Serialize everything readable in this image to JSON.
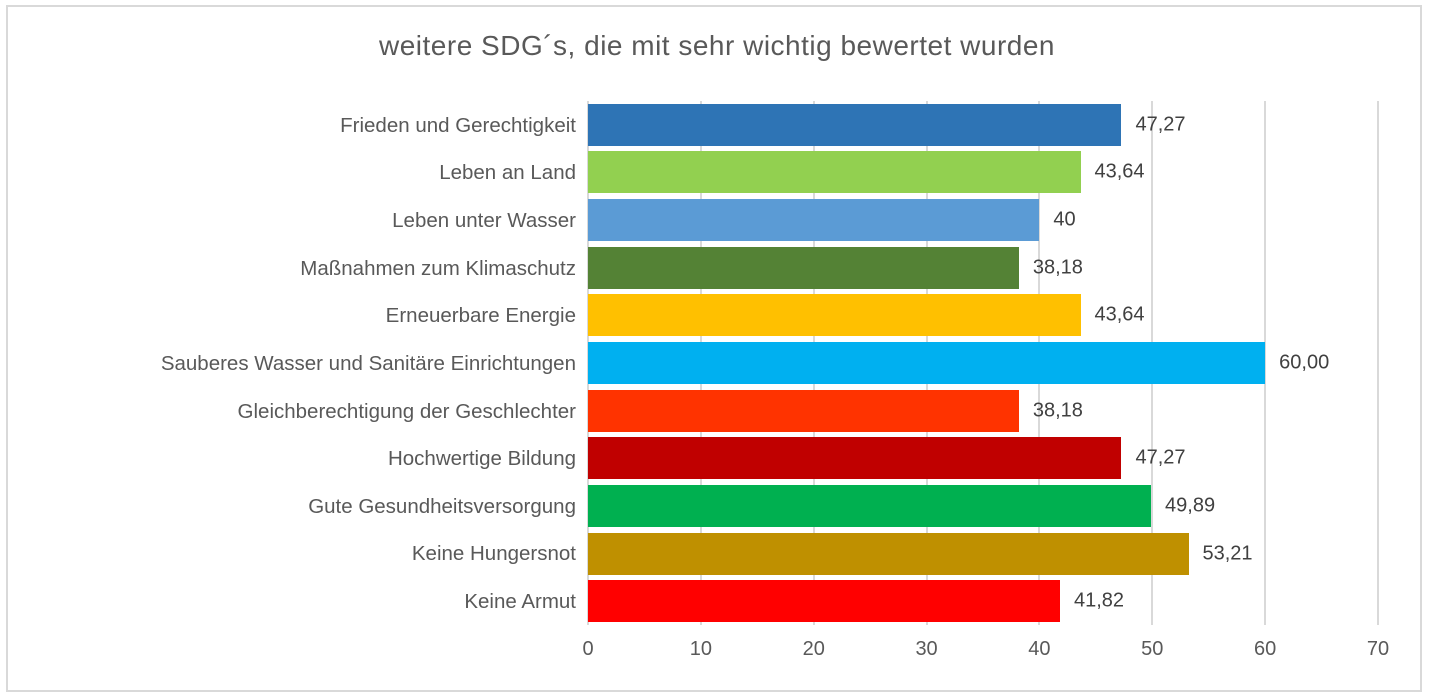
{
  "chart_data": {
    "type": "bar",
    "orientation": "horizontal",
    "title": "weitere SDG´s, die mit sehr wichtig bewertet wurden",
    "categories": [
      "Frieden und Gerechtigkeit",
      "Leben an Land",
      "Leben unter Wasser",
      "Maßnahmen zum Klimaschutz",
      "Erneuerbare Energie",
      "Sauberes Wasser und Sanitäre Einrichtungen",
      "Gleichberechtigung der Geschlechter",
      "Hochwertige Bildung",
      "Gute Gesundheitsversorgung",
      "Keine Hungersnot",
      "Keine Armut"
    ],
    "values": [
      47.27,
      43.64,
      40,
      38.18,
      43.64,
      60.0,
      38.18,
      47.27,
      49.89,
      53.21,
      41.82
    ],
    "value_labels": [
      "47,27",
      "43,64",
      "40",
      "38,18",
      "43,64",
      "60,00",
      "38,18",
      "47,27",
      "49,89",
      "53,21",
      "41,82"
    ],
    "bar_colors": [
      "#2e74b5",
      "#92d050",
      "#5b9bd5",
      "#548235",
      "#ffc000",
      "#00b0f0",
      "#ff3300",
      "#c00000",
      "#00b050",
      "#bf9000",
      "#ff0000"
    ],
    "xlabel": "",
    "ylabel": "",
    "xlim": [
      0,
      70
    ],
    "x_ticks": [
      0,
      10,
      20,
      30,
      40,
      50,
      60,
      70
    ],
    "grid": true,
    "legend": false,
    "data_labels": true
  },
  "style": {
    "gridline_color": "#d9d9d9",
    "frame_color": "#d9d9d9",
    "title_color": "#595959",
    "axis_text_color": "#595959",
    "value_label_color": "#404040",
    "background": "#ffffff"
  }
}
